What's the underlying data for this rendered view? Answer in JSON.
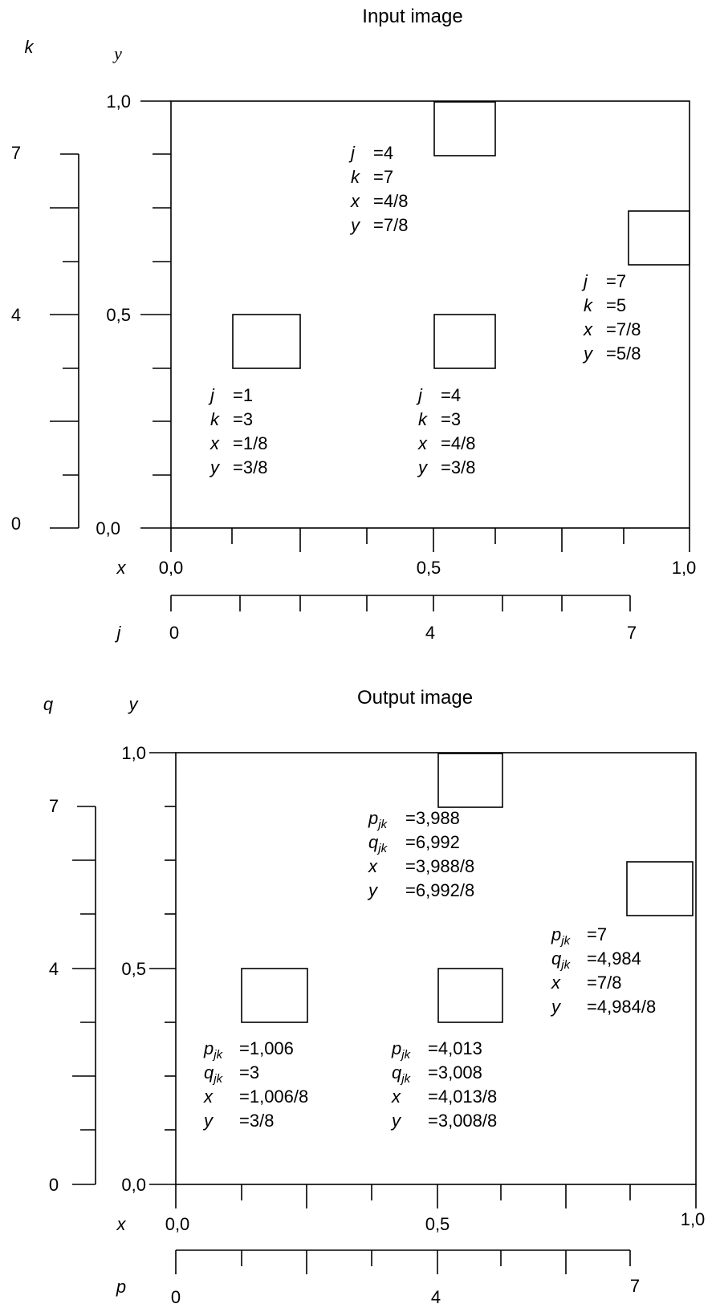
{
  "input": {
    "title": "Input image",
    "vlabel_outer": "k",
    "vlabel_inner": "y",
    "hlabel_inner": "x",
    "hlabel_outer": "j",
    "y_ticks": [
      "1,0",
      "0,5",
      "0,0"
    ],
    "k_ticks": [
      "7",
      "4",
      "0"
    ],
    "x_ticks": [
      "0,0",
      "0,5",
      "1,0"
    ],
    "j_ticks": [
      "0",
      "4",
      "7"
    ],
    "annotations": [
      {
        "lines": [
          {
            "v": "j",
            "val": "=4"
          },
          {
            "v": "k",
            "val": "=7"
          },
          {
            "v": "x",
            "val": "=4/8"
          },
          {
            "v": "y",
            "val": "=7/8"
          }
        ]
      },
      {
        "lines": [
          {
            "v": "j",
            "val": "=7"
          },
          {
            "v": "k",
            "val": "=5"
          },
          {
            "v": "x",
            "val": "=7/8"
          },
          {
            "v": "y",
            "val": "=5/8"
          }
        ]
      },
      {
        "lines": [
          {
            "v": "j",
            "val": "=1"
          },
          {
            "v": "k",
            "val": "=3"
          },
          {
            "v": "x",
            "val": "=1/8"
          },
          {
            "v": "y",
            "val": "=3/8"
          }
        ]
      },
      {
        "lines": [
          {
            "v": "j",
            "val": "=4"
          },
          {
            "v": "k",
            "val": "=3"
          },
          {
            "v": "x",
            "val": "=4/8"
          },
          {
            "v": "y",
            "val": "=3/8"
          }
        ]
      }
    ]
  },
  "output": {
    "title": "Output image",
    "vlabel_outer": "q",
    "vlabel_inner": "y",
    "hlabel_inner": "x",
    "hlabel_outer": "p",
    "y_ticks": [
      "1,0",
      "0,5",
      "0,0"
    ],
    "q_ticks": [
      "7",
      "4",
      "0"
    ],
    "x_ticks": [
      "0,0",
      "0,5",
      "1,0"
    ],
    "p_ticks": [
      "0",
      "4",
      "7"
    ],
    "annotations": [
      {
        "lines": [
          {
            "v": "p",
            "s": "jk",
            "val": "=3,988"
          },
          {
            "v": "q",
            "s": "jk",
            "val": "=6,992"
          },
          {
            "v": "x",
            "val": "=3,988/8"
          },
          {
            "v": "y",
            "val": "=6,992/8"
          }
        ]
      },
      {
        "lines": [
          {
            "v": "p",
            "s": "jk",
            "val": "=7"
          },
          {
            "v": "q",
            "s": "jk",
            "val": "=4,984"
          },
          {
            "v": "x",
            "val": "=7/8"
          },
          {
            "v": "y",
            "val": "=4,984/8"
          }
        ]
      },
      {
        "lines": [
          {
            "v": "p",
            "s": "jk",
            "val": "=1,006"
          },
          {
            "v": "q",
            "s": "jk",
            "val": "=3"
          },
          {
            "v": "x",
            "val": "=1,006/8"
          },
          {
            "v": "y",
            "val": "=3/8"
          }
        ]
      },
      {
        "lines": [
          {
            "v": "p",
            "s": "jk",
            "val": "=4,013"
          },
          {
            "v": "q",
            "s": "jk",
            "val": "=3,008"
          },
          {
            "v": "x",
            "val": "=4,013/8"
          },
          {
            "v": "y",
            "val": "=3,008/8"
          }
        ]
      }
    ]
  }
}
